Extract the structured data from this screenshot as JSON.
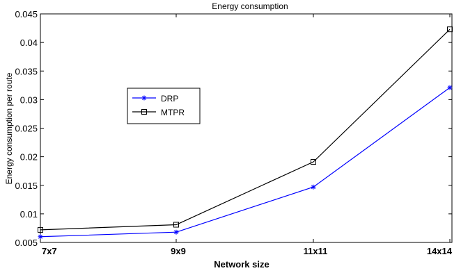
{
  "chart_data": {
    "type": "line",
    "title": "Energy consumption",
    "xlabel": "Network size",
    "ylabel": "Energy consumption per route",
    "categories": [
      "7x7",
      "9x9",
      "11x11",
      "14x14"
    ],
    "ylim": [
      0.005,
      0.045
    ],
    "yticks": [
      "0.005",
      "0.01",
      "0.015",
      "0.02",
      "0.025",
      "0.03",
      "0.035",
      "0.04",
      "0.045"
    ],
    "grid": false,
    "legend_position": "center-left",
    "series": [
      {
        "name": "DRP",
        "values": [
          0.006,
          0.0068,
          0.0147,
          0.0321
        ],
        "color": "#0000ff",
        "marker": "asterisk"
      },
      {
        "name": "MTPR",
        "values": [
          0.0072,
          0.0081,
          0.0191,
          0.0423
        ],
        "color": "#000000",
        "marker": "square"
      }
    ]
  }
}
